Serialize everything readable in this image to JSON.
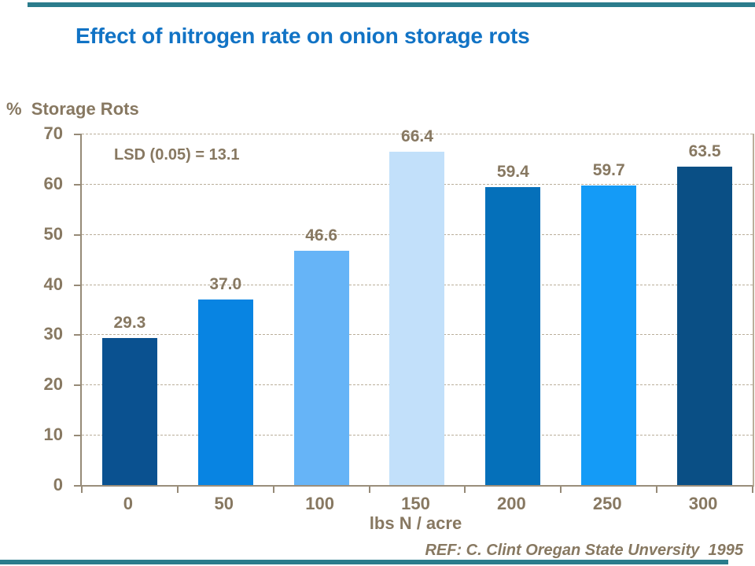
{
  "decor": {
    "stripe_color": "#2b7c8c"
  },
  "title": {
    "text": "Effect of nitrogen rate on onion storage rots",
    "color": "#1173c5"
  },
  "footer": {
    "ref": "REF: C. Clint Oregan State Unversity  1995"
  },
  "chart_data": {
    "type": "bar",
    "title": "Effect of nitrogen rate on onion storage rots",
    "ylabel": "%  Storage Rots",
    "xlabel": "lbs N / acre",
    "categories": [
      "0",
      "50",
      "100",
      "150",
      "200",
      "250",
      "300"
    ],
    "values": [
      29.3,
      37.0,
      46.6,
      66.4,
      59.4,
      59.7,
      63.5
    ],
    "value_labels": [
      "29.3",
      "37.0",
      "46.6",
      "66.4",
      "59.4",
      "59.7",
      "63.5"
    ],
    "bar_colors": [
      "#0a5190",
      "#0884e2",
      "#66b4f7",
      "#c2e0fa",
      "#0570ba",
      "#149bf7",
      "#0a4f85"
    ],
    "ylim": [
      0,
      70
    ],
    "yticks": [
      0,
      10,
      20,
      30,
      40,
      50,
      60,
      70
    ],
    "grid": "horizontal dashed",
    "legend": "none",
    "annotation": "LSD (0.05) = 13.1",
    "text_color": "#877861",
    "axis_color": "#968a77",
    "grid_color": "#b9ae9a"
  }
}
